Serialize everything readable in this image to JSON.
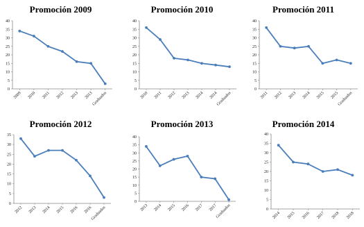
{
  "chart_data": [
    {
      "type": "line",
      "title": "Promoción 2009",
      "categories": [
        "2009",
        "2010",
        "2011",
        "2012",
        "2013",
        "2013",
        "Graduados"
      ],
      "values": [
        34,
        31,
        25,
        22,
        16,
        15,
        3
      ],
      "yticks": [
        "0",
        "5",
        "10",
        "15",
        "20",
        "25",
        "30",
        "35",
        "40"
      ],
      "ylim": [
        0,
        40
      ],
      "xlabel": "",
      "ylabel": "",
      "grid": false,
      "legend": "none",
      "color": "#4a7ebb"
    },
    {
      "type": "line",
      "title": "Promoción 2010",
      "categories": [
        "2010",
        "2011",
        "2012",
        "2013",
        "2014",
        "2014",
        "Graduados"
      ],
      "values": [
        36,
        29,
        18,
        17,
        15,
        14,
        13
      ],
      "yticks": [
        "0",
        "5",
        "10",
        "15",
        "20",
        "25",
        "30",
        "35",
        "40"
      ],
      "ylim": [
        0,
        40
      ],
      "xlabel": "",
      "ylabel": "",
      "grid": false,
      "legend": "none",
      "color": "#4a7ebb"
    },
    {
      "type": "line",
      "title": "Promoción 2011",
      "categories": [
        "2011",
        "2012",
        "2013",
        "2014",
        "2015",
        "2015",
        "Graduados"
      ],
      "values": [
        36,
        25,
        24,
        25,
        15,
        17,
        15
      ],
      "yticks": [
        "0",
        "5",
        "10",
        "15",
        "20",
        "25",
        "30",
        "35",
        "40"
      ],
      "ylim": [
        0,
        40
      ],
      "xlabel": "",
      "ylabel": "",
      "grid": false,
      "legend": "none",
      "color": "#4a7ebb"
    },
    {
      "type": "line",
      "title": "Promoción 2012",
      "categories": [
        "2012",
        "2013",
        "2014",
        "2015",
        "2016",
        "2016",
        "Graduados"
      ],
      "values": [
        33,
        24,
        27,
        27,
        22,
        14,
        3
      ],
      "yticks": [
        "0",
        "5",
        "10",
        "15",
        "20",
        "25",
        "30",
        "35"
      ],
      "ylim": [
        0,
        35
      ],
      "xlabel": "",
      "ylabel": "",
      "grid": false,
      "legend": "none",
      "color": "#4a7ebb"
    },
    {
      "type": "line",
      "title": "Promoción 2013",
      "categories": [
        "2013",
        "2014",
        "2015",
        "2016",
        "2017",
        "2017",
        "Graduados"
      ],
      "values": [
        34,
        22,
        26,
        28,
        15,
        14,
        1
      ],
      "yticks": [
        "0",
        "5",
        "10",
        "15",
        "20",
        "25",
        "30",
        "35",
        "40"
      ],
      "ylim": [
        0,
        40
      ],
      "xlabel": "",
      "ylabel": "",
      "grid": false,
      "legend": "none",
      "color": "#4a7ebb"
    },
    {
      "type": "line",
      "title": "Promoción 2014",
      "categories": [
        "2014",
        "2015",
        "2016",
        "2017",
        "2018",
        "2018"
      ],
      "values": [
        34,
        25,
        24,
        20,
        21,
        18
      ],
      "yticks": [
        "0",
        "5",
        "10",
        "15",
        "20",
        "25",
        "30",
        "35",
        "40"
      ],
      "ylim": [
        0,
        40
      ],
      "xlabel": "",
      "ylabel": "",
      "grid": false,
      "legend": "none",
      "color": "#4a7ebb"
    }
  ]
}
